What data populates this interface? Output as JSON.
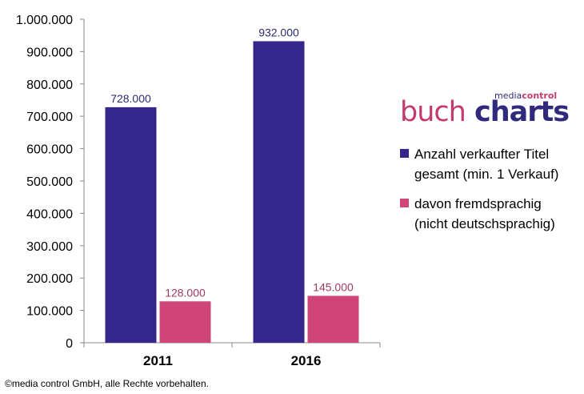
{
  "chart_data": {
    "type": "bar",
    "categories": [
      "2011",
      "2016"
    ],
    "series": [
      {
        "name": "Anzahl verkaufter Titel gesamt (min. 1 Verkauf)",
        "legend_lines": [
          "Anzahl verkaufter Titel",
          "gesamt (min. 1 Verkauf)"
        ],
        "values": [
          728000,
          932000
        ],
        "value_labels": [
          "728.000",
          "932.000"
        ],
        "color": "#34268b",
        "label_color": "#2b2a6e"
      },
      {
        "name": "davon fremdsprachig (nicht deutschsprachig)",
        "legend_lines": [
          "davon fremdsprachig",
          "(nicht deutschsprachig)"
        ],
        "values": [
          128000,
          145000
        ],
        "value_labels": [
          "128.000",
          "145.000"
        ],
        "color": "#cf4578",
        "label_color": "#a03a64"
      }
    ],
    "ylim": [
      0,
      1000000
    ],
    "yticks": [
      0,
      100000,
      200000,
      300000,
      400000,
      500000,
      600000,
      700000,
      800000,
      900000,
      1000000
    ],
    "ytick_labels": [
      "0",
      "100.000",
      "200.000",
      "300.000",
      "400.000",
      "500.000",
      "600.000",
      "700.000",
      "800.000",
      "900.000",
      "1.000.000"
    ],
    "grid": false,
    "legend_position": "right",
    "title": "",
    "xlabel": "",
    "ylabel": ""
  },
  "logo": {
    "buch": "buch",
    "charts": "charts",
    "media": "media",
    "control": "control"
  },
  "footer": {
    "text": "©media control GmbH, alle Rechte vorbehalten."
  }
}
